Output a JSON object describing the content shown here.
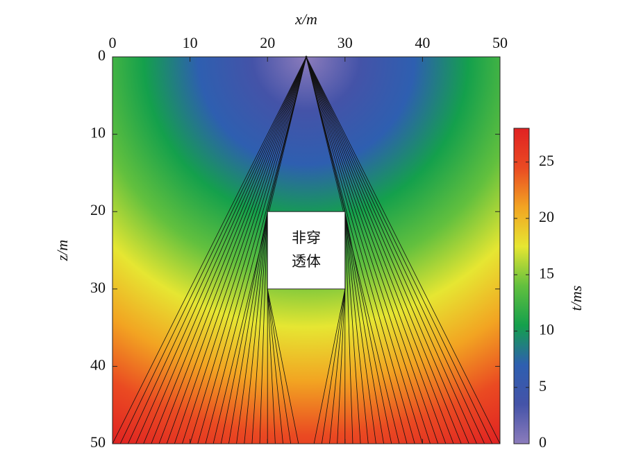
{
  "chart_data": {
    "type": "heatmap",
    "xlabel": "x/m",
    "ylabel": "z/m",
    "colorbar_label": "t/ms",
    "xlim": [
      0,
      50
    ],
    "xticks": [
      0,
      10,
      20,
      30,
      40,
      50
    ],
    "ylim": [
      0,
      50
    ],
    "yticks": [
      0,
      10,
      20,
      30,
      40,
      50
    ],
    "y_inverted": true,
    "clim": [
      0,
      28
    ],
    "cticks": [
      0,
      5,
      10,
      15,
      20,
      25
    ],
    "colormap": [
      "#8c7cbc",
      "#4453a8",
      "#2e5fb0",
      "#14a04c",
      "#62c03e",
      "#e6e632",
      "#f2a422",
      "#ea4a22",
      "#e02222"
    ],
    "source": {
      "x": 25,
      "z": 0
    },
    "receivers": {
      "z": 50,
      "x": [
        0,
        1,
        2,
        3,
        4,
        5,
        6,
        7,
        8,
        9,
        10,
        11,
        12,
        13,
        14,
        15,
        16,
        17,
        18,
        19,
        20,
        21,
        22,
        23,
        24,
        26,
        27,
        28,
        29,
        30,
        31,
        32,
        33,
        34,
        35,
        36,
        37,
        38,
        39,
        40,
        41,
        42,
        43,
        44,
        45,
        46,
        47,
        48,
        49,
        50
      ]
    },
    "obstacle": {
      "label": [
        "非穿",
        "透体"
      ],
      "x": [
        20,
        30
      ],
      "z": [
        20,
        30
      ]
    }
  }
}
